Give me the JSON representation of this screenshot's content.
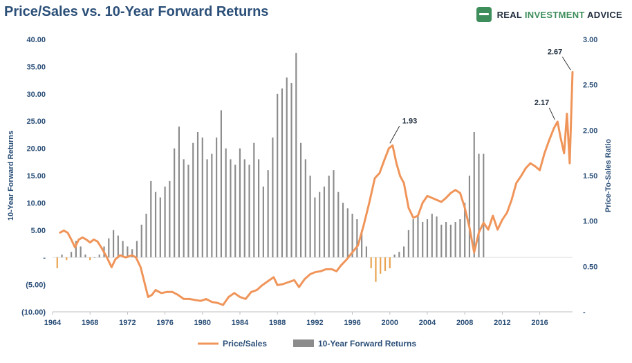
{
  "title": "Price/Sales vs. 10-Year Forward Returns",
  "brand": {
    "name_part1": "REAL ",
    "name_part2": "INVESTMENT",
    "name_part3": " ADVICE",
    "icon": "rectangle-logo-icon"
  },
  "colors": {
    "price_sales": "#f0955a",
    "returns_positive": "#8c8c8c",
    "returns_negative": "#e8a24d",
    "axis_text": "#2b4f78"
  },
  "chart_data": {
    "type": "bar",
    "title": "Price/Sales vs. 10-Year Forward Returns",
    "ylabel_left": "10-Year Forward Returns",
    "ylabel_right": "Price-To-Sales Ratio",
    "ylim_left": [
      -10,
      40
    ],
    "ylim_right": [
      0.25,
      3.0
    ],
    "xlim": [
      1964,
      2019.5
    ],
    "left_ticks": [
      "40.00",
      "35.00",
      "30.00",
      "25.00",
      "20.00",
      "15.00",
      "10.00",
      "5.00",
      "-",
      "(5.00)",
      "(10.00)"
    ],
    "right_ticks": [
      "3.00",
      "2.50",
      "2.00",
      "1.50",
      "1.00",
      "0.50",
      "-"
    ],
    "x_ticks": [
      "1964",
      "1968",
      "1972",
      "1976",
      "1980",
      "1984",
      "1988",
      "1992",
      "1996",
      "2000",
      "2004",
      "2008",
      "2012",
      "2016"
    ],
    "legend": [
      "Price/Sales",
      "10-Year Forward Returns"
    ],
    "annotations": [
      {
        "text": "1.93",
        "x": 2000.0,
        "y": 1.93
      },
      {
        "text": "2.17",
        "x": 2017.6,
        "y": 2.17
      },
      {
        "text": "2.67",
        "x": 2019.3,
        "y": 2.67
      }
    ],
    "series": [
      {
        "name": "Price/Sales",
        "kind": "line",
        "axis": "right",
        "points": [
          [
            1964.8,
            1.05
          ],
          [
            1965.2,
            1.07
          ],
          [
            1965.6,
            1.05
          ],
          [
            1966.0,
            0.98
          ],
          [
            1966.4,
            0.9
          ],
          [
            1966.8,
            0.98
          ],
          [
            1967.2,
            1.0
          ],
          [
            1967.6,
            0.98
          ],
          [
            1968.0,
            0.95
          ],
          [
            1968.4,
            0.98
          ],
          [
            1968.8,
            0.96
          ],
          [
            1969.2,
            0.9
          ],
          [
            1969.8,
            0.8
          ],
          [
            1970.3,
            0.7
          ],
          [
            1970.7,
            0.78
          ],
          [
            1971.2,
            0.82
          ],
          [
            1971.8,
            0.8
          ],
          [
            1972.5,
            0.82
          ],
          [
            1972.9,
            0.8
          ],
          [
            1973.4,
            0.7
          ],
          [
            1973.8,
            0.55
          ],
          [
            1974.2,
            0.4
          ],
          [
            1974.6,
            0.42
          ],
          [
            1975.0,
            0.47
          ],
          [
            1975.6,
            0.44
          ],
          [
            1976.2,
            0.45
          ],
          [
            1976.8,
            0.45
          ],
          [
            1977.4,
            0.42
          ],
          [
            1978.0,
            0.38
          ],
          [
            1978.6,
            0.38
          ],
          [
            1979.2,
            0.37
          ],
          [
            1979.8,
            0.36
          ],
          [
            1980.4,
            0.38
          ],
          [
            1981.0,
            0.35
          ],
          [
            1981.6,
            0.34
          ],
          [
            1982.2,
            0.32
          ],
          [
            1982.8,
            0.4
          ],
          [
            1983.4,
            0.44
          ],
          [
            1984.0,
            0.4
          ],
          [
            1984.6,
            0.38
          ],
          [
            1985.2,
            0.45
          ],
          [
            1985.8,
            0.47
          ],
          [
            1986.4,
            0.52
          ],
          [
            1987.0,
            0.56
          ],
          [
            1987.6,
            0.6
          ],
          [
            1988.0,
            0.52
          ],
          [
            1988.6,
            0.53
          ],
          [
            1989.2,
            0.55
          ],
          [
            1989.8,
            0.57
          ],
          [
            1990.3,
            0.5
          ],
          [
            1990.9,
            0.58
          ],
          [
            1991.5,
            0.63
          ],
          [
            1992.0,
            0.65
          ],
          [
            1992.6,
            0.66
          ],
          [
            1993.2,
            0.68
          ],
          [
            1993.8,
            0.68
          ],
          [
            1994.3,
            0.66
          ],
          [
            1994.8,
            0.72
          ],
          [
            1995.4,
            0.78
          ],
          [
            1996.0,
            0.85
          ],
          [
            1996.6,
            0.92
          ],
          [
            1997.2,
            1.12
          ],
          [
            1997.8,
            1.35
          ],
          [
            1998.4,
            1.6
          ],
          [
            1998.9,
            1.65
          ],
          [
            1999.4,
            1.78
          ],
          [
            1999.9,
            1.9
          ],
          [
            2000.3,
            1.93
          ],
          [
            2000.7,
            1.75
          ],
          [
            2001.1,
            1.62
          ],
          [
            2001.5,
            1.55
          ],
          [
            2002.0,
            1.3
          ],
          [
            2002.5,
            1.2
          ],
          [
            2003.0,
            1.22
          ],
          [
            2003.5,
            1.35
          ],
          [
            2004.0,
            1.42
          ],
          [
            2004.5,
            1.4
          ],
          [
            2005.0,
            1.38
          ],
          [
            2005.5,
            1.36
          ],
          [
            2006.0,
            1.4
          ],
          [
            2006.5,
            1.45
          ],
          [
            2007.0,
            1.48
          ],
          [
            2007.5,
            1.45
          ],
          [
            2008.0,
            1.3
          ],
          [
            2008.5,
            1.1
          ],
          [
            2009.0,
            0.85
          ],
          [
            2009.5,
            1.05
          ],
          [
            2010.0,
            1.15
          ],
          [
            2010.5,
            1.08
          ],
          [
            2011.0,
            1.22
          ],
          [
            2011.5,
            1.08
          ],
          [
            2012.0,
            1.18
          ],
          [
            2012.5,
            1.25
          ],
          [
            2013.0,
            1.38
          ],
          [
            2013.5,
            1.55
          ],
          [
            2014.0,
            1.62
          ],
          [
            2014.5,
            1.7
          ],
          [
            2015.0,
            1.75
          ],
          [
            2015.5,
            1.72
          ],
          [
            2016.0,
            1.68
          ],
          [
            2016.5,
            1.85
          ],
          [
            2017.0,
            1.98
          ],
          [
            2017.5,
            2.1
          ],
          [
            2017.9,
            2.17
          ],
          [
            2018.2,
            2.02
          ],
          [
            2018.6,
            1.85
          ],
          [
            2018.9,
            2.25
          ],
          [
            2019.2,
            1.75
          ],
          [
            2019.5,
            2.67
          ]
        ]
      },
      {
        "name": "10-Year Forward Returns",
        "kind": "bar",
        "axis": "left",
        "points": [
          [
            1964.5,
            -2.0
          ],
          [
            1965.0,
            0.5
          ],
          [
            1965.5,
            -0.5
          ],
          [
            1966.0,
            1.0
          ],
          [
            1966.5,
            3.0
          ],
          [
            1967.0,
            2.0
          ],
          [
            1967.5,
            0.5
          ],
          [
            1968.0,
            -0.5
          ],
          [
            1968.5,
            0.0
          ],
          [
            1969.0,
            0.5
          ],
          [
            1969.5,
            2.0
          ],
          [
            1970.0,
            3.5
          ],
          [
            1970.5,
            5.0
          ],
          [
            1971.0,
            4.0
          ],
          [
            1971.5,
            3.0
          ],
          [
            1972.0,
            2.0
          ],
          [
            1972.5,
            1.5
          ],
          [
            1973.0,
            3.0
          ],
          [
            1973.5,
            6.0
          ],
          [
            1974.0,
            8.0
          ],
          [
            1974.5,
            14.0
          ],
          [
            1975.0,
            12.0
          ],
          [
            1975.5,
            11.0
          ],
          [
            1976.0,
            13.0
          ],
          [
            1976.5,
            14.0
          ],
          [
            1977.0,
            20.0
          ],
          [
            1977.5,
            24.0
          ],
          [
            1978.0,
            18.0
          ],
          [
            1978.5,
            17.0
          ],
          [
            1979.0,
            21.0
          ],
          [
            1979.5,
            23.0
          ],
          [
            1980.0,
            22.0
          ],
          [
            1980.5,
            18.0
          ],
          [
            1981.0,
            19.0
          ],
          [
            1981.5,
            22.0
          ],
          [
            1982.0,
            27.0
          ],
          [
            1982.5,
            20.0
          ],
          [
            1983.0,
            18.0
          ],
          [
            1983.5,
            17.0
          ],
          [
            1984.0,
            20.0
          ],
          [
            1984.5,
            18.0
          ],
          [
            1985.0,
            17.0
          ],
          [
            1985.5,
            21.0
          ],
          [
            1986.0,
            18.0
          ],
          [
            1986.5,
            13.0
          ],
          [
            1987.0,
            16.0
          ],
          [
            1987.5,
            22.0
          ],
          [
            1988.0,
            30.0
          ],
          [
            1988.5,
            31.0
          ],
          [
            1989.0,
            33.0
          ],
          [
            1989.5,
            32.0
          ],
          [
            1990.0,
            37.5
          ],
          [
            1990.5,
            21.0
          ],
          [
            1991.0,
            18.0
          ],
          [
            1991.5,
            15.0
          ],
          [
            1992.0,
            11.0
          ],
          [
            1992.5,
            12.0
          ],
          [
            1993.0,
            13.0
          ],
          [
            1993.5,
            15.0
          ],
          [
            1994.0,
            16.0
          ],
          [
            1994.5,
            12.0
          ],
          [
            1995.0,
            10.0
          ],
          [
            1995.5,
            9.0
          ],
          [
            1996.0,
            8.0
          ],
          [
            1996.5,
            7.0
          ],
          [
            1997.0,
            5.0
          ],
          [
            1997.5,
            2.0
          ],
          [
            1998.0,
            -2.0
          ],
          [
            1998.5,
            -4.5
          ],
          [
            1999.0,
            -3.0
          ],
          [
            1999.5,
            -2.5
          ],
          [
            2000.0,
            -2.0
          ],
          [
            2000.5,
            0.5
          ],
          [
            2001.0,
            1.0
          ],
          [
            2001.5,
            2.0
          ],
          [
            2002.0,
            5.0
          ],
          [
            2002.5,
            7.0
          ],
          [
            2003.0,
            7.5
          ],
          [
            2003.5,
            6.5
          ],
          [
            2004.0,
            7.0
          ],
          [
            2004.5,
            8.0
          ],
          [
            2005.0,
            7.5
          ],
          [
            2005.5,
            6.0
          ],
          [
            2006.0,
            6.5
          ],
          [
            2006.5,
            6.0
          ],
          [
            2007.0,
            6.5
          ],
          [
            2007.5,
            7.0
          ],
          [
            2008.0,
            10.0
          ],
          [
            2008.5,
            15.0
          ],
          [
            2009.0,
            23.0
          ],
          [
            2009.5,
            19.0
          ],
          [
            2010.0,
            19.0
          ]
        ]
      }
    ]
  }
}
